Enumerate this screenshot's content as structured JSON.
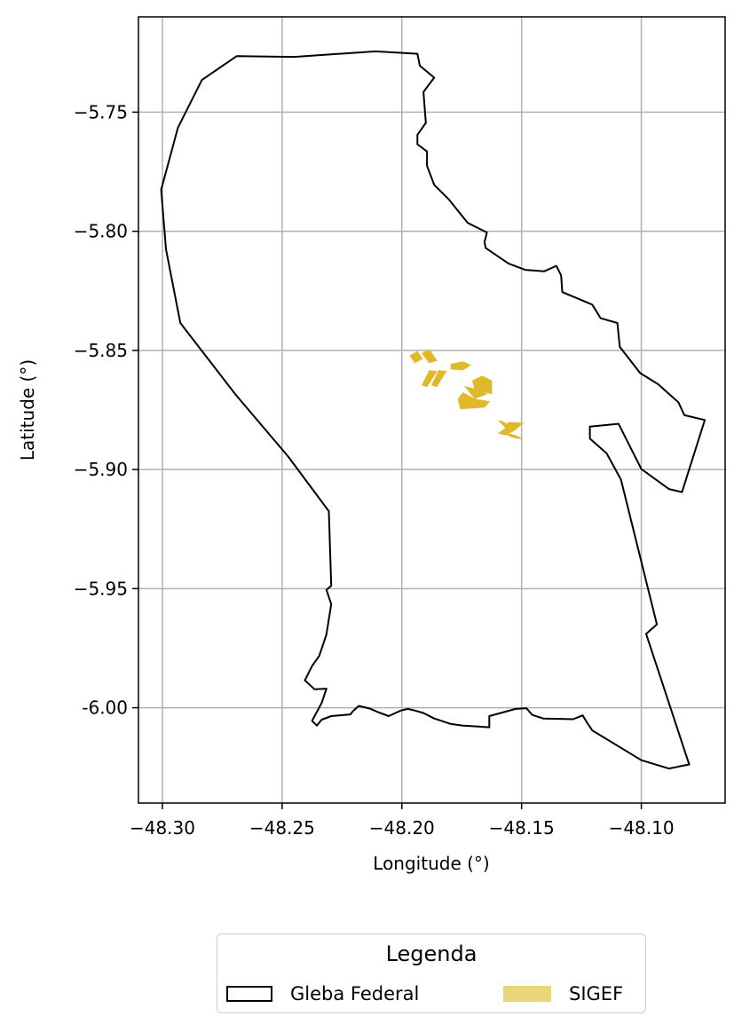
{
  "map": {
    "xlabel": "Longitude (°)",
    "ylabel": "Latitude (°)",
    "xlim": [
      -48.31,
      -48.065
    ],
    "ylim": [
      -6.04,
      -5.71
    ],
    "grid": true,
    "xticks": [
      {
        "value": -48.3,
        "label": "−48.30"
      },
      {
        "value": -48.25,
        "label": "−48.25"
      },
      {
        "value": -48.2,
        "label": "−48.20"
      },
      {
        "value": -48.15,
        "label": "−48.15"
      },
      {
        "value": -48.1,
        "label": "−48.10"
      }
    ],
    "yticks": [
      {
        "value": -5.75,
        "label": "−5.75"
      },
      {
        "value": -5.8,
        "label": "−5.80"
      },
      {
        "value": -5.85,
        "label": "−5.85"
      },
      {
        "value": -5.9,
        "label": "−5.90"
      },
      {
        "value": -5.95,
        "label": "−5.95"
      },
      {
        "value": -6.0,
        "label": "-6.00"
      }
    ],
    "colors": {
      "gleba_stroke": "#000000",
      "sigef_fill": "#e0b92a",
      "grid": "#b0b0b0"
    },
    "gleba_federal": [
      [
        -48.269,
        -5.7265
      ],
      [
        -48.245,
        -5.7268
      ],
      [
        -48.211,
        -5.7245
      ],
      [
        -48.1935,
        -5.7255
      ],
      [
        -48.1925,
        -5.7305
      ],
      [
        -48.1865,
        -5.7355
      ],
      [
        -48.191,
        -5.7415
      ],
      [
        -48.19,
        -5.7545
      ],
      [
        -48.1935,
        -5.7595
      ],
      [
        -48.1935,
        -5.7635
      ],
      [
        -48.1895,
        -5.7665
      ],
      [
        -48.1895,
        -5.7725
      ],
      [
        -48.1865,
        -5.7805
      ],
      [
        -48.1805,
        -5.7865
      ],
      [
        -48.1725,
        -5.7965
      ],
      [
        -48.1645,
        -5.8005
      ],
      [
        -48.1655,
        -5.8045
      ],
      [
        -48.165,
        -5.807
      ],
      [
        -48.1555,
        -5.8135
      ],
      [
        -48.1485,
        -5.8162
      ],
      [
        -48.1405,
        -5.8168
      ],
      [
        -48.1355,
        -5.8145
      ],
      [
        -48.1335,
        -5.8185
      ],
      [
        -48.133,
        -5.8255
      ],
      [
        -48.1205,
        -5.8308
      ],
      [
        -48.117,
        -5.8365
      ],
      [
        -48.11,
        -5.8385
      ],
      [
        -48.109,
        -5.8485
      ],
      [
        -48.1005,
        -5.8595
      ],
      [
        -48.093,
        -5.8642
      ],
      [
        -48.0845,
        -5.8718
      ],
      [
        -48.082,
        -5.8772
      ],
      [
        -48.0735,
        -5.8792
      ],
      [
        -48.083,
        -5.9095
      ],
      [
        -48.0885,
        -5.9082
      ],
      [
        -48.1,
        -5.8998
      ],
      [
        -48.1095,
        -5.8808
      ],
      [
        -48.1215,
        -5.882
      ],
      [
        -48.1215,
        -5.887
      ],
      [
        -48.1145,
        -5.8932
      ],
      [
        -48.1085,
        -5.9042
      ],
      [
        -48.0935,
        -5.965
      ],
      [
        -48.098,
        -5.969
      ],
      [
        -48.08,
        -6.0238
      ],
      [
        -48.0885,
        -6.0255
      ],
      [
        -48.1,
        -6.022
      ],
      [
        -48.1205,
        -6.0095
      ],
      [
        -48.1225,
        -6.0065
      ],
      [
        -48.1245,
        -6.0032
      ],
      [
        -48.1285,
        -6.0048
      ],
      [
        -48.141,
        -6.0045
      ],
      [
        -48.1455,
        -6.003
      ],
      [
        -48.148,
        -6.0002
      ],
      [
        -48.1525,
        -6.0005
      ],
      [
        -48.1635,
        -6.0035
      ],
      [
        -48.1635,
        -6.0082
      ],
      [
        -48.1695,
        -6.0078
      ],
      [
        -48.1745,
        -6.0075
      ],
      [
        -48.1795,
        -6.0068
      ],
      [
        -48.1865,
        -6.0045
      ],
      [
        -48.191,
        -6.0022
      ],
      [
        -48.1945,
        -6.0012
      ],
      [
        -48.1975,
        -6.0005
      ],
      [
        -48.2005,
        -6.0012
      ],
      [
        -48.2055,
        -6.0035
      ],
      [
        -48.2095,
        -6.002
      ],
      [
        -48.2135,
        -6.0003
      ],
      [
        -48.218,
        -5.9992
      ],
      [
        -48.2205,
        -6.0015
      ],
      [
        -48.2215,
        -6.0028
      ],
      [
        -48.2295,
        -6.0035
      ],
      [
        -48.2335,
        -6.005
      ],
      [
        -48.2355,
        -6.0075
      ],
      [
        -48.2375,
        -6.0055
      ],
      [
        -48.2335,
        -5.998
      ],
      [
        -48.2315,
        -5.992
      ],
      [
        -48.2365,
        -5.9922
      ],
      [
        -48.2405,
        -5.9885
      ],
      [
        -48.2375,
        -5.9825
      ],
      [
        -48.2345,
        -5.9782
      ],
      [
        -48.2315,
        -5.9692
      ],
      [
        -48.2295,
        -5.9565
      ],
      [
        -48.2315,
        -5.9505
      ],
      [
        -48.2295,
        -5.9488
      ],
      [
        -48.2305,
        -5.9175
      ],
      [
        -48.2475,
        -5.8945
      ],
      [
        -48.2695,
        -5.8685
      ],
      [
        -48.2925,
        -5.8385
      ],
      [
        -48.2985,
        -5.8075
      ],
      [
        -48.3005,
        -5.7825
      ],
      [
        -48.2935,
        -5.7565
      ],
      [
        -48.2835,
        -5.7365
      ],
      [
        -48.269,
        -5.7265
      ]
    ],
    "sigef_parcels": [
      [
        [
          -48.1965,
          -5.8522
        ],
        [
          -48.1935,
          -5.8505
        ],
        [
          -48.1915,
          -5.8535
        ],
        [
          -48.1945,
          -5.8552
        ]
      ],
      [
        [
          -48.1915,
          -5.8512
        ],
        [
          -48.1885,
          -5.8498
        ],
        [
          -48.1855,
          -5.8542
        ],
        [
          -48.1885,
          -5.8552
        ]
      ],
      [
        [
          -48.1795,
          -5.8558
        ],
        [
          -48.1745,
          -5.8548
        ],
        [
          -48.1715,
          -5.8562
        ],
        [
          -48.1745,
          -5.8582
        ],
        [
          -48.1795,
          -5.8578
        ]
      ],
      [
        [
          -48.1885,
          -5.8585
        ],
        [
          -48.1855,
          -5.8588
        ],
        [
          -48.1895,
          -5.8652
        ],
        [
          -48.1915,
          -5.8645
        ]
      ],
      [
        [
          -48.1845,
          -5.8585
        ],
        [
          -48.1815,
          -5.8588
        ],
        [
          -48.1855,
          -5.8652
        ],
        [
          -48.1875,
          -5.8645
        ]
      ],
      [
        [
          -48.1665,
          -5.8608
        ],
        [
          -48.1625,
          -5.8628
        ],
        [
          -48.1625,
          -5.8682
        ],
        [
          -48.1695,
          -5.8662
        ],
        [
          -48.1705,
          -5.8628
        ]
      ],
      [
        [
          -48.1735,
          -5.8652
        ],
        [
          -48.1685,
          -5.8665
        ],
        [
          -48.1645,
          -5.8682
        ],
        [
          -48.1695,
          -5.8702
        ]
      ],
      [
        [
          -48.1745,
          -5.8678
        ],
        [
          -48.1695,
          -5.8705
        ],
        [
          -48.1635,
          -5.8715
        ],
        [
          -48.1655,
          -5.8738
        ],
        [
          -48.1755,
          -5.8745
        ],
        [
          -48.1765,
          -5.8705
        ]
      ],
      [
        [
          -48.1595,
          -5.8795
        ],
        [
          -48.1575,
          -5.8802
        ],
        [
          -48.1545,
          -5.8815
        ],
        [
          -48.1565,
          -5.8825
        ]
      ],
      [
        [
          -48.1555,
          -5.8802
        ],
        [
          -48.1495,
          -5.8805
        ],
        [
          -48.1525,
          -5.8832
        ],
        [
          -48.1565,
          -5.8855
        ],
        [
          -48.1595,
          -5.8848
        ],
        [
          -48.1565,
          -5.8825
        ]
      ],
      [
        [
          -48.1565,
          -5.8848
        ],
        [
          -48.1525,
          -5.8858
        ],
        [
          -48.1495,
          -5.8872
        ],
        [
          -48.1545,
          -5.8862
        ]
      ]
    ]
  },
  "legend": {
    "title": "Legenda",
    "gleba_label": "Gleba Federal",
    "sigef_label": "SIGEF",
    "sigef_swatch_color": "#ebd57a"
  }
}
